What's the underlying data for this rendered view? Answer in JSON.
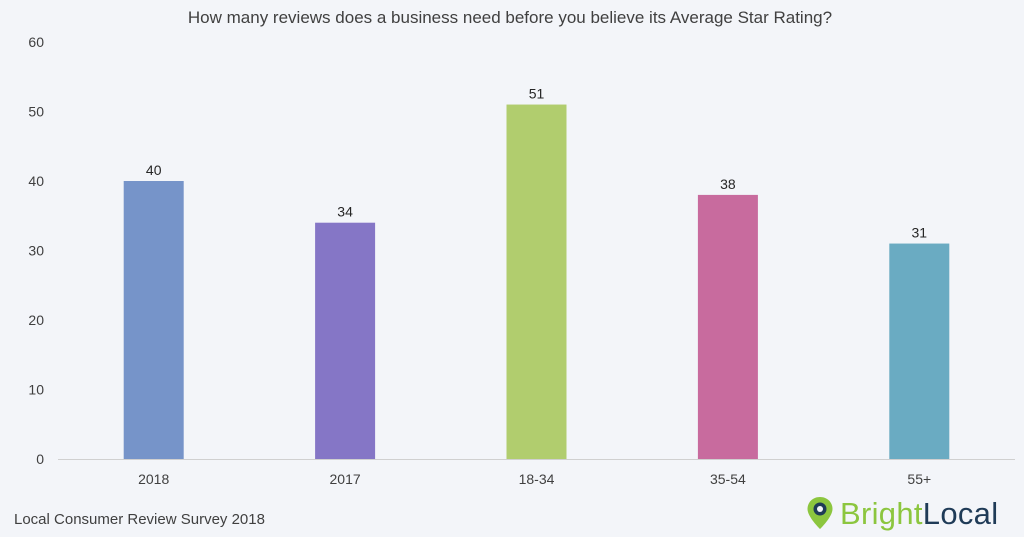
{
  "chart_data": {
    "type": "bar",
    "title": "How many reviews does a business need before you believe its Average Star Rating?",
    "categories": [
      "2018",
      "2017",
      "18-34",
      "35-54",
      "55+"
    ],
    "values": [
      40,
      34,
      51,
      38,
      31
    ],
    "value_labels": [
      "40",
      "34",
      "51",
      "38",
      "31"
    ],
    "colors": [
      "#7694c9",
      "#8576c6",
      "#b1cd6e",
      "#c86b9e",
      "#6aabc2"
    ],
    "ylim": [
      0,
      60
    ],
    "yticks": [
      "0",
      "10",
      "20",
      "30",
      "40",
      "50",
      "60"
    ],
    "xlabel": "",
    "ylabel": "",
    "grid": false,
    "legend": "none"
  },
  "footer": {
    "source": "Local Consumer Review Survey 2018"
  },
  "logo": {
    "part1": "Bright",
    "part2": "Local",
    "accent_color": "#8cc63f",
    "dark_color": "#1f3b57",
    "icon": "map-pin-icon"
  }
}
